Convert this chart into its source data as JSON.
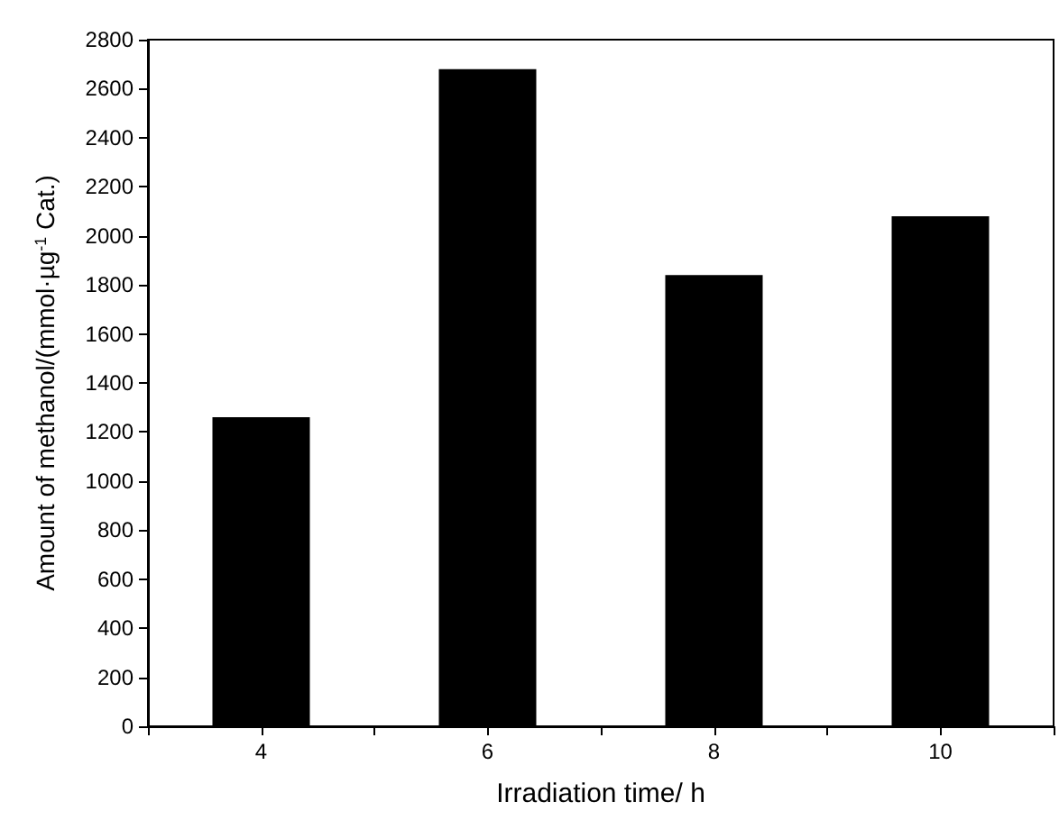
{
  "chart_data": {
    "type": "bar",
    "xlabel": "Irradiation time/ h",
    "ylabel": "Amount of methanol/(mmol·µg$^{-1}$ Cat.)",
    "x": [
      4,
      6,
      8,
      10
    ],
    "values": [
      1260,
      2680,
      1840,
      2080
    ],
    "color": "#000000",
    "xlim": [
      3,
      11
    ],
    "xticks": [
      {
        "value": 3,
        "label": null
      },
      4,
      {
        "value": 5,
        "label": null
      },
      6,
      {
        "value": 7,
        "label": null
      },
      8,
      {
        "value": 9,
        "label": null
      },
      10,
      {
        "value": 11,
        "label": null
      }
    ],
    "ylim": [
      0,
      2800
    ],
    "yticks": [
      0,
      200,
      400,
      600,
      800,
      1000,
      1200,
      1400,
      1600,
      1800,
      2000,
      2200,
      2400,
      2600,
      2800
    ],
    "grid": false
  }
}
